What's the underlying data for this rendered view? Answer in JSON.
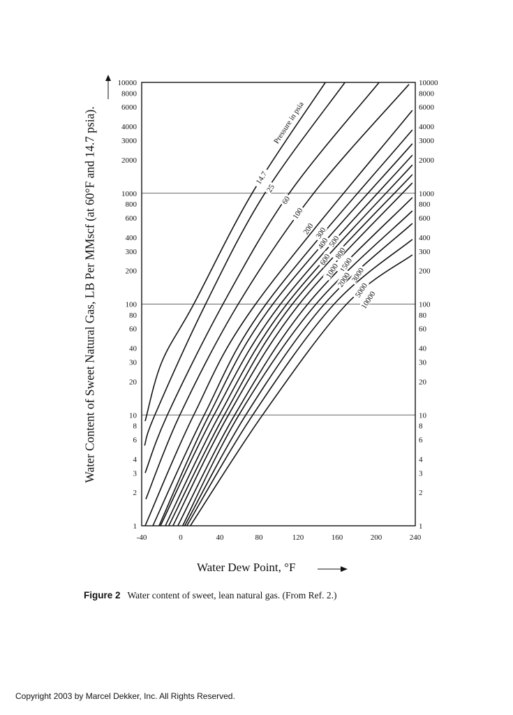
{
  "chart_data": {
    "type": "line",
    "title": "",
    "xlabel": "Water Dew Point, °F",
    "ylabel": "Water Content of Sweet Natural Gas, LB Per MMscf (at 60°F and 14.7 psia).",
    "xlim": [
      -40,
      240
    ],
    "ylim": [
      1,
      10000
    ],
    "yscale": "log",
    "grid_y": [
      10,
      100,
      1000
    ],
    "x_ticks": [
      "-40",
      "0",
      "40",
      "80",
      "120",
      "160",
      "200",
      "240"
    ],
    "y_ticks": [
      "10000",
      "8000",
      "6000",
      "4000",
      "3000",
      "2000",
      "1000",
      "800",
      "600",
      "400",
      "300",
      "200",
      "100",
      "80",
      "60",
      "40",
      "30",
      "20",
      "10",
      "8",
      "6",
      "4",
      "3",
      "2",
      "1"
    ],
    "annotation": "Pressure in psia",
    "series": [
      {
        "name": "14.7",
        "points": [
          [
            -36.4,
            8.8
          ],
          [
            -19.4,
            30
          ],
          [
            13.3,
            100
          ],
          [
            73,
            1000
          ],
          [
            148,
            10000
          ]
        ]
      },
      {
        "name": "25",
        "points": [
          [
            -37,
            5.3
          ],
          [
            -26.5,
            10
          ],
          [
            25.4,
            100
          ],
          [
            86,
            1000
          ],
          [
            168,
            10000
          ]
        ]
      },
      {
        "name": "60",
        "points": [
          [
            -36.4,
            3.0
          ],
          [
            -13.7,
            10
          ],
          [
            43.2,
            100
          ],
          [
            111,
            1000
          ],
          [
            203,
            10000
          ]
        ]
      },
      {
        "name": "100",
        "points": [
          [
            -35.7,
            1.74
          ],
          [
            -0.9,
            10
          ],
          [
            58.8,
            100
          ],
          [
            136,
            1000
          ],
          [
            233.6,
            9600
          ]
        ]
      },
      {
        "name": "200",
        "points": [
          [
            -36.4,
            1
          ],
          [
            13.3,
            10
          ],
          [
            76.6,
            100
          ],
          [
            237,
            5600
          ]
        ]
      },
      {
        "name": "300",
        "points": [
          [
            -28.6,
            1
          ],
          [
            24,
            10
          ],
          [
            87.2,
            100
          ],
          [
            237,
            3730
          ]
        ]
      },
      {
        "name": "400",
        "points": [
          [
            -22.2,
            1
          ],
          [
            29,
            10
          ],
          [
            94.3,
            100
          ],
          [
            237,
            2800
          ]
        ]
      },
      {
        "name": "500",
        "points": [
          [
            -20.8,
            1
          ],
          [
            34,
            10
          ],
          [
            102.1,
            100
          ],
          [
            237,
            2210
          ]
        ]
      },
      {
        "name": "600",
        "points": [
          [
            -15.8,
            1
          ],
          [
            39.6,
            10
          ],
          [
            108.5,
            100
          ],
          [
            237,
            1800
          ]
        ]
      },
      {
        "name": "800",
        "points": [
          [
            -12.3,
            1
          ],
          [
            44.6,
            10
          ],
          [
            114.2,
            100
          ],
          [
            237,
            1475
          ]
        ]
      },
      {
        "name": "1000",
        "points": [
          [
            -8,
            1
          ],
          [
            48.8,
            10
          ],
          [
            121.3,
            100
          ],
          [
            237,
            1240
          ]
        ]
      },
      {
        "name": "1500",
        "points": [
          [
            -3,
            1
          ],
          [
            55.2,
            10
          ],
          [
            129.9,
            100
          ],
          [
            237,
            915
          ]
        ]
      },
      {
        "name": "2000",
        "points": [
          [
            1.9,
            1
          ],
          [
            59.5,
            10
          ],
          [
            138.4,
            100
          ],
          [
            237,
            693
          ]
        ]
      },
      {
        "name": "3000",
        "points": [
          [
            4,
            1
          ],
          [
            66.6,
            10
          ],
          [
            146.9,
            100
          ],
          [
            237,
            534
          ]
        ]
      },
      {
        "name": "5000",
        "points": [
          [
            6.2,
            1
          ],
          [
            73.7,
            10
          ],
          [
            156.9,
            100
          ],
          [
            237,
            383
          ]
        ]
      },
      {
        "name": "10000",
        "points": [
          [
            9.8,
            1
          ],
          [
            83.7,
            10
          ],
          [
            169.7,
            100
          ],
          [
            237,
            278
          ]
        ]
      }
    ]
  },
  "caption": {
    "figure_label": "Figure 2",
    "text": "Water content of sweet, lean natural gas. (From Ref. 2.)"
  },
  "footer": "Copyright 2003 by Marcel Dekker, Inc. All Rights Reserved."
}
